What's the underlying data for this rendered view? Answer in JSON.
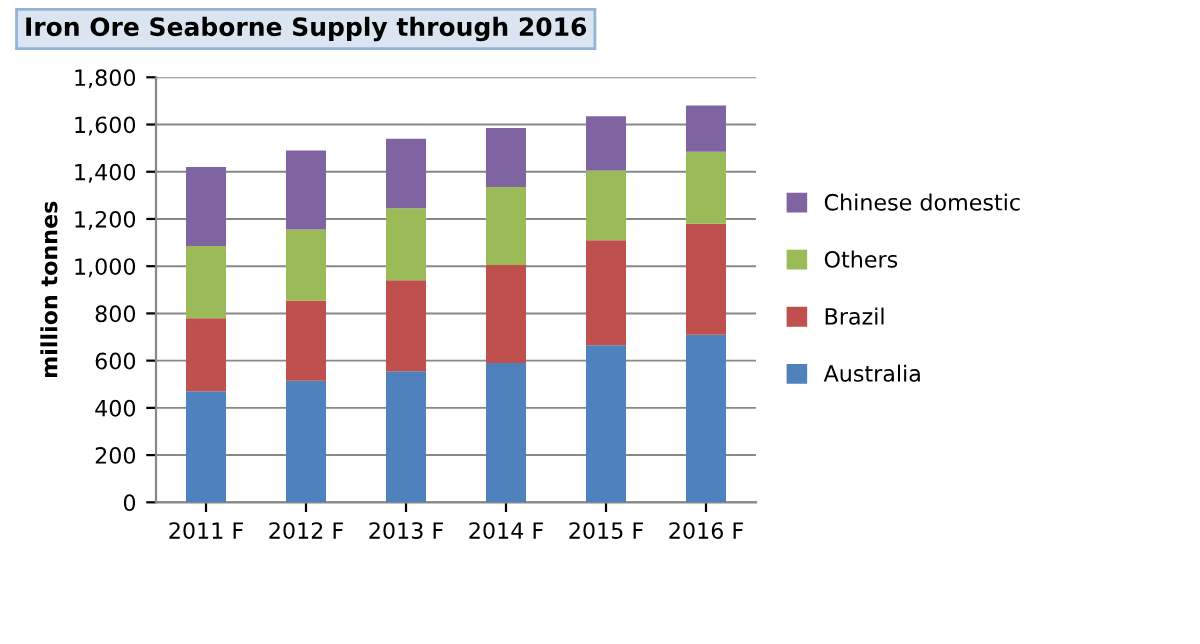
{
  "chart_data": {
    "type": "bar",
    "stacked": true,
    "title": "Iron Ore Seaborne Supply through 2016",
    "ylabel": "million tonnes",
    "categories": [
      "2011 F",
      "2012 F",
      "2013 F",
      "2014 F",
      "2015 F",
      "2016 F"
    ],
    "series": [
      {
        "name": "Australia",
        "color": "#4f81bd",
        "values": [
          470,
          515,
          555,
          590,
          665,
          710
        ]
      },
      {
        "name": "Brazil",
        "color": "#c0504d",
        "values": [
          310,
          340,
          385,
          415,
          445,
          470
        ]
      },
      {
        "name": "Others",
        "color": "#9bbb59",
        "values": [
          305,
          300,
          305,
          330,
          295,
          305
        ]
      },
      {
        "name": "Chinese domestic",
        "color": "#8064a2",
        "values": [
          335,
          335,
          295,
          250,
          230,
          195
        ]
      }
    ],
    "ylim": [
      0,
      1800
    ],
    "yticks": [
      {
        "value": 0,
        "label": "0"
      },
      {
        "value": 200,
        "label": "200"
      },
      {
        "value": 400,
        "label": "400"
      },
      {
        "value": 600,
        "label": "600"
      },
      {
        "value": 800,
        "label": "800"
      },
      {
        "value": 1000,
        "label": "1,000"
      },
      {
        "value": 1200,
        "label": "1,200"
      },
      {
        "value": 1400,
        "label": "1,400"
      },
      {
        "value": 1600,
        "label": "1,600"
      },
      {
        "value": 1800,
        "label": "1,800"
      }
    ],
    "grid": "y",
    "legend": "right"
  }
}
